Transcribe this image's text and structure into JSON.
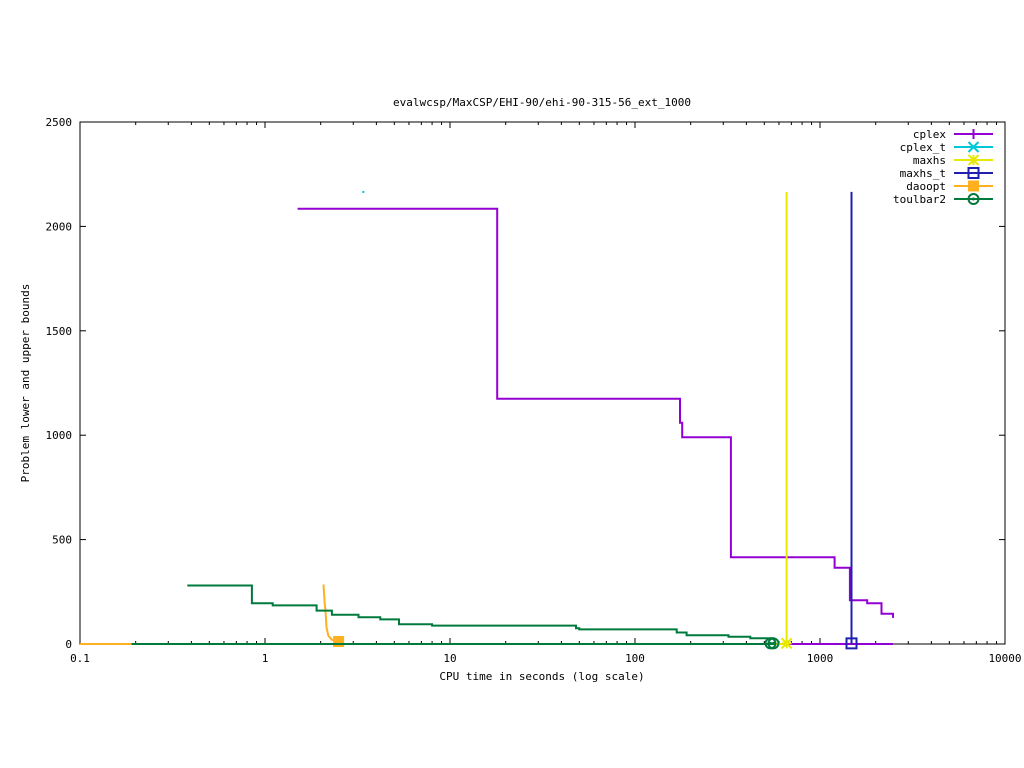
{
  "chart_data": {
    "type": "line",
    "title": "evalwcsp/MaxCSP/EHI-90/ehi-90-315-56_ext_1000",
    "xlabel": "CPU time in seconds (log scale)",
    "ylabel": "Problem lower and upper bounds",
    "x_scale": "log",
    "xlim": [
      0.1,
      10000
    ],
    "ylim": [
      0,
      2500
    ],
    "x_ticks": [
      0.1,
      1,
      10,
      100,
      1000,
      10000
    ],
    "x_tick_labels": [
      "0.1",
      "1",
      "10",
      "100",
      "1000",
      "10000"
    ],
    "y_ticks": [
      0,
      500,
      1000,
      1500,
      2000,
      2500
    ],
    "y_tick_labels": [
      "0",
      "500",
      "1000",
      "1500",
      "2000",
      "2500"
    ],
    "legend_position": "top-right",
    "series": [
      {
        "name": "cplex",
        "color": "#9400d3",
        "marker": "plus",
        "line": "step",
        "points": [
          [
            1.5,
            2085
          ],
          [
            18,
            2085
          ],
          [
            18,
            1175
          ],
          [
            175,
            1175
          ],
          [
            175,
            1060
          ],
          [
            180,
            1060
          ],
          [
            180,
            990
          ],
          [
            330,
            990
          ],
          [
            330,
            415
          ],
          [
            1200,
            415
          ],
          [
            1200,
            365
          ],
          [
            1450,
            365
          ],
          [
            1450,
            210
          ],
          [
            1800,
            210
          ],
          [
            1800,
            195
          ],
          [
            2150,
            195
          ],
          [
            2150,
            145
          ],
          [
            2480,
            145
          ],
          [
            2480,
            125
          ]
        ],
        "lower": [
          [
            0.2,
            0
          ],
          [
            2480,
            0
          ]
        ]
      },
      {
        "name": "cplex_t",
        "color": "#00c8d8",
        "marker": "x",
        "line": "points",
        "points": [
          [
            3.4,
            2165
          ]
        ]
      },
      {
        "name": "maxhs",
        "color": "#e8e800",
        "marker": "star",
        "line": "step",
        "points": [
          [
            660,
            2165
          ],
          [
            660,
            0
          ]
        ],
        "lower": [
          [
            0.2,
            0
          ],
          [
            660,
            0
          ]
        ]
      },
      {
        "name": "maxhs_t",
        "color": "#2020b0",
        "marker": "square",
        "line": "step",
        "points": [
          [
            1480,
            2165
          ],
          [
            1480,
            0
          ]
        ],
        "lower": [
          [
            1480,
            0
          ]
        ]
      },
      {
        "name": "daoopt",
        "color": "#ffb020",
        "marker": "filled-square",
        "line": "step",
        "points": [
          [
            2.07,
            285
          ],
          [
            2.1,
            200
          ],
          [
            2.12,
            165
          ],
          [
            2.15,
            80
          ],
          [
            2.2,
            40
          ],
          [
            2.3,
            20
          ],
          [
            2.5,
            12
          ]
        ],
        "lower": [
          [
            0.1,
            0
          ],
          [
            0.19,
            0
          ]
        ]
      },
      {
        "name": "toulbar2",
        "color": "#007a3c",
        "marker": "circle",
        "line": "step",
        "points": [
          [
            0.38,
            280
          ],
          [
            0.85,
            280
          ],
          [
            0.85,
            195
          ],
          [
            1.1,
            195
          ],
          [
            1.1,
            185
          ],
          [
            1.9,
            185
          ],
          [
            1.9,
            160
          ],
          [
            2.3,
            160
          ],
          [
            2.3,
            140
          ],
          [
            3.2,
            140
          ],
          [
            3.2,
            128
          ],
          [
            4.2,
            128
          ],
          [
            4.2,
            118
          ],
          [
            5.3,
            118
          ],
          [
            5.3,
            95
          ],
          [
            8,
            95
          ],
          [
            8,
            88
          ],
          [
            48,
            88
          ],
          [
            48,
            75
          ],
          [
            50,
            75
          ],
          [
            50,
            70
          ],
          [
            168,
            70
          ],
          [
            168,
            55
          ],
          [
            190,
            55
          ],
          [
            190,
            42
          ],
          [
            320,
            42
          ],
          [
            320,
            35
          ],
          [
            420,
            35
          ],
          [
            420,
            28
          ],
          [
            560,
            28
          ],
          [
            560,
            20
          ]
        ],
        "lower": [
          [
            0.19,
            0
          ],
          [
            560,
            0
          ]
        ]
      }
    ]
  }
}
